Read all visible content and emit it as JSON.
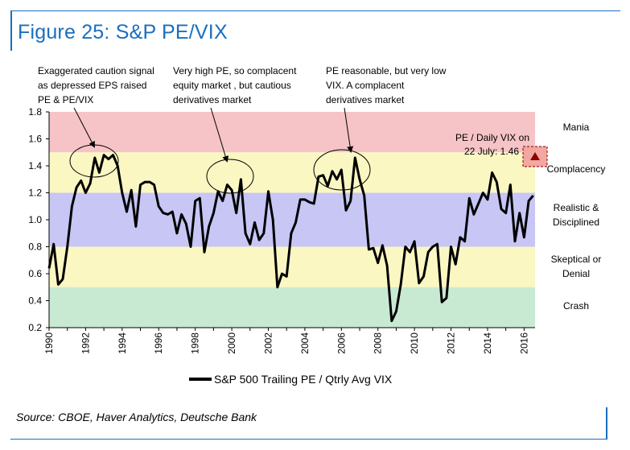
{
  "figure_title": "Figure 25: S&P PE/VIX",
  "source": "Source: CBOE, Haver Analytics, Deutsche Bank",
  "colors": {
    "accent": "#1a6fbf",
    "mania": "#f6c3c6",
    "complacency": "#fbf7c2",
    "realistic": "#c7c6f5",
    "skeptical": "#fbf7c2",
    "crash": "#c9ead2",
    "line": "#000000",
    "marker": "#8b0000",
    "marker_box": "#f4a6a0"
  },
  "chart_data": {
    "type": "line",
    "title": "Figure 25: S&P PE/VIX",
    "ylim": [
      0.2,
      1.8
    ],
    "yticks": [
      "0.2",
      "0.4",
      "0.6",
      "0.8",
      "1.0",
      "1.2",
      "1.4",
      "1.6",
      "1.8"
    ],
    "xlim": [
      1990,
      2016.6
    ],
    "xticks": [
      "1990",
      "1992",
      "1994",
      "1996",
      "1998",
      "2000",
      "2002",
      "2004",
      "2006",
      "2008",
      "2010",
      "2012",
      "2014",
      "2016"
    ],
    "grid": false,
    "legend_position": "bottom",
    "zones": [
      {
        "label": "Mania",
        "from": 1.5,
        "to": 1.8,
        "color": "#f6c3c6"
      },
      {
        "label": "Complacency",
        "from": 1.2,
        "to": 1.5,
        "color": "#fbf7c2"
      },
      {
        "label": "Realistic & Disciplined",
        "from": 0.8,
        "to": 1.2,
        "color": "#c7c6f5"
      },
      {
        "label": "Skeptical or Denial",
        "from": 0.5,
        "to": 0.8,
        "color": "#fbf7c2"
      },
      {
        "label": "Crash",
        "from": 0.2,
        "to": 0.5,
        "color": "#c9ead2"
      }
    ],
    "series": [
      {
        "name": "S&P 500 Trailing PE / Qtrly Avg VIX",
        "x": [
          1990.0,
          1990.25,
          1990.5,
          1990.75,
          1991.0,
          1991.25,
          1991.5,
          1991.75,
          1992.0,
          1992.25,
          1992.5,
          1992.75,
          1993.0,
          1993.25,
          1993.5,
          1993.75,
          1994.0,
          1994.25,
          1994.5,
          1994.75,
          1995.0,
          1995.25,
          1995.5,
          1995.75,
          1996.0,
          1996.25,
          1996.5,
          1996.75,
          1997.0,
          1997.25,
          1997.5,
          1997.75,
          1998.0,
          1998.25,
          1998.5,
          1998.75,
          1999.0,
          1999.25,
          1999.5,
          1999.75,
          2000.0,
          2000.25,
          2000.5,
          2000.75,
          2001.0,
          2001.25,
          2001.5,
          2001.75,
          2002.0,
          2002.25,
          2002.5,
          2002.75,
          2003.0,
          2003.25,
          2003.5,
          2003.75,
          2004.0,
          2004.25,
          2004.5,
          2004.75,
          2005.0,
          2005.25,
          2005.5,
          2005.75,
          2006.0,
          2006.25,
          2006.5,
          2006.75,
          2007.0,
          2007.25,
          2007.5,
          2007.75,
          2008.0,
          2008.25,
          2008.5,
          2008.75,
          2009.0,
          2009.25,
          2009.5,
          2009.75,
          2010.0,
          2010.25,
          2010.5,
          2010.75,
          2011.0,
          2011.25,
          2011.5,
          2011.75,
          2012.0,
          2012.25,
          2012.5,
          2012.75,
          2013.0,
          2013.25,
          2013.5,
          2013.75,
          2014.0,
          2014.25,
          2014.5,
          2014.75,
          2015.0,
          2015.25,
          2015.5,
          2015.75,
          2016.0,
          2016.25,
          2016.5
        ],
        "y": [
          0.64,
          0.82,
          0.52,
          0.56,
          0.8,
          1.1,
          1.24,
          1.29,
          1.2,
          1.27,
          1.46,
          1.35,
          1.48,
          1.45,
          1.48,
          1.4,
          1.2,
          1.06,
          1.22,
          0.95,
          1.26,
          1.28,
          1.28,
          1.26,
          1.1,
          1.05,
          1.04,
          1.06,
          0.9,
          1.04,
          0.97,
          0.8,
          1.14,
          1.16,
          0.76,
          0.95,
          1.05,
          1.21,
          1.14,
          1.26,
          1.22,
          1.05,
          1.3,
          0.9,
          0.82,
          0.98,
          0.85,
          0.9,
          1.21,
          1.0,
          0.5,
          0.6,
          0.58,
          0.9,
          0.98,
          1.15,
          1.15,
          1.13,
          1.12,
          1.32,
          1.33,
          1.25,
          1.36,
          1.3,
          1.37,
          1.07,
          1.14,
          1.46,
          1.3,
          1.18,
          0.78,
          0.79,
          0.68,
          0.81,
          0.66,
          0.25,
          0.32,
          0.52,
          0.8,
          0.76,
          0.84,
          0.53,
          0.58,
          0.76,
          0.8,
          0.82,
          0.39,
          0.42,
          0.8,
          0.67,
          0.87,
          0.84,
          1.16,
          1.04,
          1.12,
          1.2,
          1.15,
          1.35,
          1.28,
          1.08,
          1.05,
          1.26,
          0.84,
          1.05,
          0.87,
          1.14,
          1.18
        ]
      }
    ],
    "marker": {
      "label": "PE / Daily VIX on 22 July: 1.46",
      "x": 2016.55,
      "y": 1.46
    },
    "annotations": [
      {
        "text": "Exaggerated caution signal as depressed EPS raised PE & PE/VIX",
        "lines": [
          "Exaggerated caution signal",
          "as depressed EPS raised",
          "PE & PE/VIX"
        ],
        "x": 1993.0,
        "y": 1.46
      },
      {
        "text": "Very high PE, so complacent equity market , but cautious derivatives market",
        "lines": [
          "Very high PE, so complacent",
          "equity market , but cautious",
          "derivatives market"
        ],
        "x": 1999.9,
        "y": 1.25
      },
      {
        "text": "PE reasonable, but very low VIX. A complacent derivatives market",
        "lines": [
          "PE reasonable, but very low",
          "VIX. A complacent",
          "derivatives market"
        ],
        "x": 2006.8,
        "y": 1.42
      }
    ]
  }
}
